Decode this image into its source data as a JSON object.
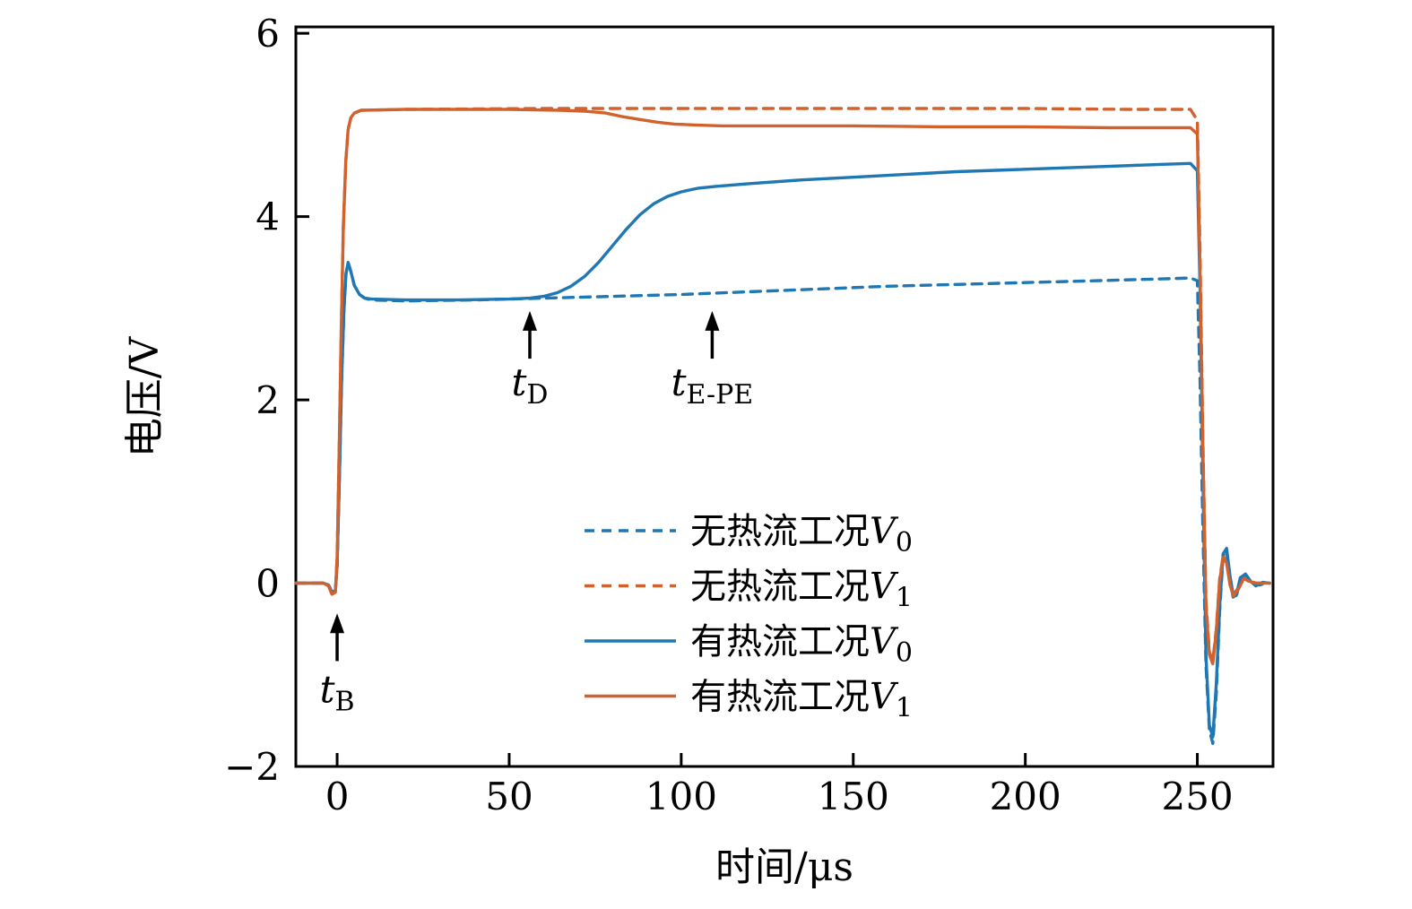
{
  "chart_data": {
    "type": "line",
    "title": "",
    "xlabel": "时间/μs",
    "ylabel": "电压/V",
    "xlim": [
      -12,
      272
    ],
    "ylim": [
      -2,
      6.07
    ],
    "xticks": [
      0,
      50,
      100,
      150,
      200,
      250
    ],
    "yticks": [
      -2,
      0,
      2,
      4,
      6
    ],
    "grid": false,
    "legend_position": "inside-lower-center",
    "colors": {
      "blue": "#1f77b4",
      "orange": "#d2622d",
      "axis": "#000000"
    },
    "legend": {
      "entries": [
        {
          "label_cjk": "无热流工况",
          "var": "V",
          "sub": "0",
          "color": "blue",
          "dash": true
        },
        {
          "label_cjk": "无热流工况",
          "var": "V",
          "sub": "1",
          "color": "orange",
          "dash": true
        },
        {
          "label_cjk": "有热流工况",
          "var": "V",
          "sub": "0",
          "color": "blue",
          "dash": false
        },
        {
          "label_cjk": "有热流工况",
          "var": "V",
          "sub": "1",
          "color": "orange",
          "dash": false
        }
      ]
    },
    "annotations": [
      {
        "id": "t-B",
        "text_main": "t",
        "text_sub": "B",
        "x": 0,
        "arrow_y_from": -0.85,
        "arrow_y_to": -0.33,
        "label_y": -1.3
      },
      {
        "id": "t-D",
        "text_main": "t",
        "text_sub": "D",
        "x": 56,
        "arrow_y_from": 2.45,
        "arrow_y_to": 2.97,
        "label_y": 2.05
      },
      {
        "id": "t-E-PE",
        "text_main": "t",
        "text_sub": "E-PE",
        "x": 109,
        "arrow_y_from": 2.45,
        "arrow_y_to": 2.97,
        "label_y": 2.05
      }
    ],
    "series": [
      {
        "id": "wu-v0",
        "name": "无热流工况V0",
        "color": "blue",
        "dash": true,
        "points": [
          [
            -12,
            0
          ],
          [
            -4,
            0
          ],
          [
            -2.5,
            -0.02
          ],
          [
            -1.5,
            -0.1
          ],
          [
            -0.5,
            -0.08
          ],
          [
            0,
            0.2
          ],
          [
            0.7,
            1.2
          ],
          [
            1.3,
            2.2
          ],
          [
            2,
            3.0
          ],
          [
            2.6,
            3.38
          ],
          [
            3.2,
            3.5
          ],
          [
            4,
            3.4
          ],
          [
            5,
            3.25
          ],
          [
            6.5,
            3.15
          ],
          [
            8,
            3.11
          ],
          [
            10,
            3.09
          ],
          [
            20,
            3.08
          ],
          [
            40,
            3.09
          ],
          [
            60,
            3.11
          ],
          [
            80,
            3.13
          ],
          [
            100,
            3.15
          ],
          [
            120,
            3.18
          ],
          [
            140,
            3.21
          ],
          [
            160,
            3.24
          ],
          [
            180,
            3.26
          ],
          [
            200,
            3.28
          ],
          [
            220,
            3.3
          ],
          [
            240,
            3.32
          ],
          [
            248,
            3.33
          ],
          [
            250,
            3.3
          ],
          [
            250.8,
            2.2
          ],
          [
            251.6,
            0.6
          ],
          [
            252.5,
            -0.9
          ],
          [
            253.5,
            -1.6
          ],
          [
            254.5,
            -1.75
          ],
          [
            255.5,
            -1.2
          ],
          [
            256.5,
            -0.3
          ],
          [
            257.5,
            0.3
          ],
          [
            258.5,
            0.35
          ],
          [
            259.5,
            0.05
          ],
          [
            260.5,
            -0.18
          ],
          [
            261.5,
            -0.12
          ],
          [
            262.5,
            0.05
          ],
          [
            264,
            0.08
          ],
          [
            266,
            0
          ],
          [
            268,
            -0.02
          ],
          [
            270,
            0
          ],
          [
            271,
            0
          ]
        ]
      },
      {
        "id": "wu-v1",
        "name": "无热流工况V1",
        "color": "orange",
        "dash": true,
        "points": [
          [
            -12,
            0
          ],
          [
            -4,
            0
          ],
          [
            -2.5,
            -0.03
          ],
          [
            -1.5,
            -0.12
          ],
          [
            -0.5,
            -0.1
          ],
          [
            0,
            0.3
          ],
          [
            0.6,
            1.5
          ],
          [
            1.2,
            2.8
          ],
          [
            1.8,
            3.9
          ],
          [
            2.5,
            4.6
          ],
          [
            3.2,
            4.95
          ],
          [
            4,
            5.08
          ],
          [
            5,
            5.13
          ],
          [
            7,
            5.16
          ],
          [
            20,
            5.17
          ],
          [
            60,
            5.18
          ],
          [
            100,
            5.18
          ],
          [
            150,
            5.18
          ],
          [
            200,
            5.18
          ],
          [
            230,
            5.17
          ],
          [
            248,
            5.17
          ],
          [
            250,
            5.05
          ],
          [
            250.8,
            3.6
          ],
          [
            251.6,
            1.6
          ],
          [
            252.5,
            -0.2
          ],
          [
            253.5,
            -0.75
          ],
          [
            254.5,
            -0.85
          ],
          [
            255.5,
            -0.5
          ],
          [
            256.5,
            0.05
          ],
          [
            257.5,
            0.3
          ],
          [
            258.5,
            0.25
          ],
          [
            259.5,
            0
          ],
          [
            260.5,
            -0.12
          ],
          [
            262,
            -0.05
          ],
          [
            263.5,
            0.06
          ],
          [
            265,
            0.03
          ],
          [
            267,
            0
          ],
          [
            271,
            0
          ]
        ]
      },
      {
        "id": "you-v0",
        "name": "有热流工况V0",
        "color": "blue",
        "dash": false,
        "points": [
          [
            -12,
            0
          ],
          [
            -4,
            0
          ],
          [
            -2.5,
            -0.02
          ],
          [
            -1.5,
            -0.1
          ],
          [
            -0.5,
            -0.08
          ],
          [
            0,
            0.2
          ],
          [
            0.7,
            1.2
          ],
          [
            1.3,
            2.2
          ],
          [
            2,
            3.0
          ],
          [
            2.6,
            3.38
          ],
          [
            3.2,
            3.5
          ],
          [
            4,
            3.4
          ],
          [
            5,
            3.25
          ],
          [
            6.5,
            3.15
          ],
          [
            8,
            3.11
          ],
          [
            10,
            3.1
          ],
          [
            20,
            3.09
          ],
          [
            35,
            3.09
          ],
          [
            50,
            3.1
          ],
          [
            56,
            3.11
          ],
          [
            60,
            3.13
          ],
          [
            64,
            3.17
          ],
          [
            68,
            3.24
          ],
          [
            72,
            3.35
          ],
          [
            76,
            3.5
          ],
          [
            80,
            3.68
          ],
          [
            84,
            3.86
          ],
          [
            88,
            4.02
          ],
          [
            92,
            4.14
          ],
          [
            96,
            4.22
          ],
          [
            100,
            4.27
          ],
          [
            105,
            4.31
          ],
          [
            110,
            4.33
          ],
          [
            120,
            4.36
          ],
          [
            135,
            4.4
          ],
          [
            150,
            4.43
          ],
          [
            165,
            4.46
          ],
          [
            180,
            4.49
          ],
          [
            195,
            4.51
          ],
          [
            210,
            4.53
          ],
          [
            225,
            4.55
          ],
          [
            240,
            4.57
          ],
          [
            248,
            4.58
          ],
          [
            250,
            4.5
          ],
          [
            250.8,
            3.2
          ],
          [
            251.6,
            1.2
          ],
          [
            252.5,
            -0.8
          ],
          [
            253.5,
            -1.55
          ],
          [
            254.5,
            -1.68
          ],
          [
            255.5,
            -1.1
          ],
          [
            256.5,
            -0.25
          ],
          [
            257.5,
            0.32
          ],
          [
            258.5,
            0.38
          ],
          [
            259.5,
            0.08
          ],
          [
            260.5,
            -0.15
          ],
          [
            261.5,
            -0.1
          ],
          [
            262.5,
            0.06
          ],
          [
            264,
            0.1
          ],
          [
            265.5,
            0.02
          ],
          [
            267,
            -0.03
          ],
          [
            269,
            0.01
          ],
          [
            271,
            0
          ]
        ]
      },
      {
        "id": "you-v1",
        "name": "有热流工况V1",
        "color": "orange",
        "dash": false,
        "points": [
          [
            -12,
            0
          ],
          [
            -4,
            0
          ],
          [
            -2.5,
            -0.03
          ],
          [
            -1.5,
            -0.12
          ],
          [
            -0.5,
            -0.1
          ],
          [
            0,
            0.3
          ],
          [
            0.6,
            1.5
          ],
          [
            1.2,
            2.8
          ],
          [
            1.8,
            3.9
          ],
          [
            2.5,
            4.6
          ],
          [
            3.2,
            4.95
          ],
          [
            4,
            5.08
          ],
          [
            5,
            5.13
          ],
          [
            7,
            5.16
          ],
          [
            20,
            5.17
          ],
          [
            50,
            5.17
          ],
          [
            65,
            5.16
          ],
          [
            72,
            5.15
          ],
          [
            78,
            5.13
          ],
          [
            83,
            5.09
          ],
          [
            88,
            5.06
          ],
          [
            93,
            5.03
          ],
          [
            98,
            5.01
          ],
          [
            104,
            5.0
          ],
          [
            112,
            4.99
          ],
          [
            130,
            4.99
          ],
          [
            150,
            4.99
          ],
          [
            175,
            4.98
          ],
          [
            200,
            4.98
          ],
          [
            225,
            4.97
          ],
          [
            248,
            4.97
          ],
          [
            250,
            4.9
          ],
          [
            250.8,
            3.4
          ],
          [
            251.6,
            1.5
          ],
          [
            252.5,
            -0.25
          ],
          [
            253.5,
            -0.78
          ],
          [
            254.5,
            -0.88
          ],
          [
            255.5,
            -0.52
          ],
          [
            256.5,
            0.03
          ],
          [
            257.5,
            0.28
          ],
          [
            258.5,
            0.22
          ],
          [
            259.5,
            -0.02
          ],
          [
            260.5,
            -0.14
          ],
          [
            262,
            -0.06
          ],
          [
            263.5,
            0.05
          ],
          [
            265,
            0.02
          ],
          [
            267,
            0
          ],
          [
            271,
            0
          ]
        ]
      }
    ]
  }
}
